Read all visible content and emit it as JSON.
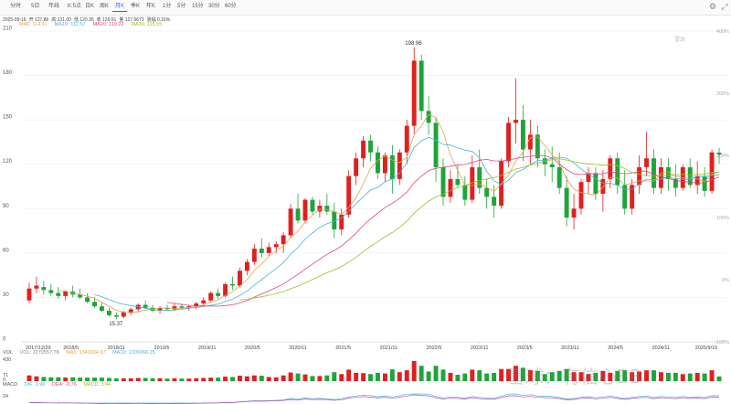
{
  "tabs": [
    "分时",
    "5日",
    "年线",
    "K:5点",
    "日K",
    "周K",
    "月K",
    "季K",
    "年K",
    "1分",
    "5分",
    "15分",
    "30分",
    "60分"
  ],
  "active_tab": "月K",
  "info": [
    "2025-09-16",
    "开 127.86",
    "高 131.00",
    "低 120.35",
    "收 126.61",
    "量 127.0673",
    "涨幅 0.16%"
  ],
  "ma": [
    {
      "label": "MA5",
      "value": "114.41",
      "color": "#e8a34c"
    },
    {
      "label": "MA10",
      "value": "112.57",
      "color": "#4cb3d4"
    },
    {
      "label": "MA20",
      "value": "110.22",
      "color": "#e0457b"
    },
    {
      "label": "MA30",
      "value": "115.55",
      "color": "#9bbf2b"
    }
  ],
  "vol_label": {
    "title": "VOL",
    "vol": "VOL: 1270557.78",
    "ma5": "MA5: 1341604.97",
    "ma10": "MA10: 1306066.25"
  },
  "macd_label": {
    "title": "MACD",
    "dif": "DIF: 0.96",
    "dea": "DEA: -0.76",
    "macd": "MACD: 3.44"
  },
  "watermark": "雪球：有信心BB",
  "wm_top": "雪球",
  "chart_data": {
    "type": "candlestick",
    "title": "",
    "ylim": [
      0,
      210
    ],
    "y_ticks": [
      0,
      30,
      60,
      90,
      120,
      150,
      180,
      210
    ],
    "pct_ticks": [
      "400%",
      "300%",
      "200%",
      "100%",
      "0%",
      "-100%"
    ],
    "x_tick_labels": [
      "2017/12/29",
      "2018/5",
      "2018/11",
      "2019/5",
      "2019/11",
      "2020/5",
      "2020/11",
      "2021/5",
      "2021/11",
      "2022/5",
      "2022/11",
      "2023/5",
      "2023/11",
      "2024/5",
      "2024/11",
      "2025/9/16"
    ],
    "annotations": {
      "high": "198.96",
      "low": "15.37"
    },
    "vol_ticks": [
      "430",
      "71",
      "0"
    ],
    "macd_ticks": [
      "24"
    ],
    "candles": [
      [
        28,
        40,
        26,
        36
      ],
      [
        36,
        44,
        33,
        38
      ],
      [
        37,
        41,
        32,
        35
      ],
      [
        35,
        39,
        31,
        33
      ],
      [
        33,
        37,
        29,
        31
      ],
      [
        31,
        35,
        28,
        34
      ],
      [
        34,
        38,
        30,
        32
      ],
      [
        32,
        36,
        29,
        30
      ],
      [
        30,
        33,
        26,
        27
      ],
      [
        27,
        30,
        23,
        24
      ],
      [
        24,
        27,
        20,
        21
      ],
      [
        21,
        23,
        17,
        18
      ],
      [
        18,
        20,
        15.37,
        17
      ],
      [
        17,
        21,
        16,
        20
      ],
      [
        20,
        23,
        18,
        22
      ],
      [
        22,
        26,
        20,
        25
      ],
      [
        25,
        28,
        22,
        23
      ],
      [
        23,
        25,
        20,
        21
      ],
      [
        21,
        24,
        19,
        23
      ],
      [
        23,
        25,
        21,
        22
      ],
      [
        22,
        26,
        21,
        24
      ],
      [
        24,
        26,
        22,
        23
      ],
      [
        23,
        25,
        21,
        24
      ],
      [
        24,
        27,
        22,
        26
      ],
      [
        26,
        30,
        24,
        28
      ],
      [
        28,
        34,
        27,
        33
      ],
      [
        33,
        36,
        29,
        31
      ],
      [
        31,
        40,
        30,
        39
      ],
      [
        39,
        44,
        35,
        38
      ],
      [
        38,
        50,
        37,
        48
      ],
      [
        48,
        56,
        45,
        54
      ],
      [
        54,
        66,
        52,
        63
      ],
      [
        63,
        70,
        57,
        60
      ],
      [
        60,
        67,
        58,
        64
      ],
      [
        64,
        68,
        60,
        66
      ],
      [
        66,
        74,
        60,
        72
      ],
      [
        72,
        93,
        70,
        90
      ],
      [
        90,
        100,
        80,
        82
      ],
      [
        82,
        97,
        80,
        96
      ],
      [
        96,
        98,
        86,
        88
      ],
      [
        88,
        96,
        84,
        92
      ],
      [
        92,
        100,
        86,
        88
      ],
      [
        88,
        94,
        70,
        76
      ],
      [
        76,
        90,
        72,
        86
      ],
      [
        86,
        116,
        84,
        112
      ],
      [
        112,
        128,
        106,
        124
      ],
      [
        124,
        139,
        118,
        136
      ],
      [
        136,
        140,
        122,
        128
      ],
      [
        128,
        132,
        110,
        114
      ],
      [
        114,
        128,
        108,
        126
      ],
      [
        126,
        133,
        100,
        110
      ],
      [
        110,
        130,
        106,
        128
      ],
      [
        128,
        150,
        120,
        146
      ],
      [
        146,
        198.96,
        140,
        190
      ],
      [
        190,
        194,
        150,
        156
      ],
      [
        156,
        166,
        140,
        148
      ],
      [
        148,
        152,
        108,
        118
      ],
      [
        118,
        124,
        92,
        98
      ],
      [
        98,
        116,
        94,
        110
      ],
      [
        110,
        120,
        104,
        106
      ],
      [
        106,
        112,
        92,
        96
      ],
      [
        96,
        126,
        94,
        118
      ],
      [
        118,
        130,
        100,
        104
      ],
      [
        104,
        110,
        90,
        98
      ],
      [
        98,
        106,
        84,
        92
      ],
      [
        92,
        124,
        90,
        122
      ],
      [
        122,
        152,
        118,
        148
      ],
      [
        148,
        178,
        134,
        150
      ],
      [
        150,
        160,
        122,
        130
      ],
      [
        130,
        150,
        120,
        140
      ],
      [
        140,
        146,
        118,
        124
      ],
      [
        124,
        130,
        112,
        120
      ],
      [
        120,
        132,
        108,
        118
      ],
      [
        118,
        128,
        100,
        104
      ],
      [
        104,
        112,
        78,
        84
      ],
      [
        84,
        100,
        76,
        90
      ],
      [
        90,
        110,
        86,
        108
      ],
      [
        108,
        118,
        100,
        114
      ],
      [
        114,
        118,
        96,
        100
      ],
      [
        100,
        116,
        88,
        110
      ],
      [
        110,
        126,
        104,
        124
      ],
      [
        124,
        128,
        100,
        106
      ],
      [
        106,
        116,
        86,
        90
      ],
      [
        90,
        110,
        86,
        106
      ],
      [
        106,
        126,
        100,
        118
      ],
      [
        118,
        142,
        112,
        124
      ],
      [
        124,
        130,
        100,
        104
      ],
      [
        104,
        124,
        100,
        118
      ],
      [
        118,
        124,
        102,
        110
      ],
      [
        110,
        120,
        98,
        104
      ],
      [
        104,
        120,
        102,
        118
      ],
      [
        118,
        124,
        104,
        106
      ],
      [
        106,
        122,
        100,
        112
      ],
      [
        112,
        118,
        98,
        102
      ],
      [
        102,
        130,
        100,
        128
      ],
      [
        127.86,
        131,
        120.35,
        126.61
      ]
    ]
  }
}
